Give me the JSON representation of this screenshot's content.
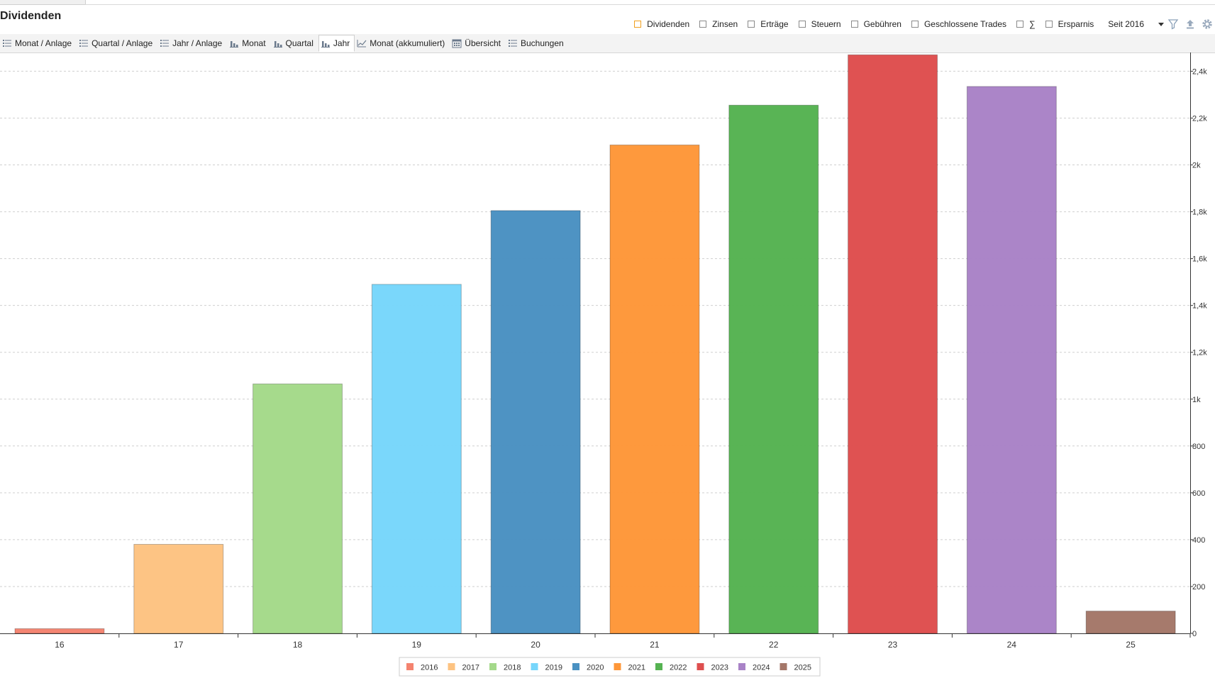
{
  "header": {
    "title": "Dividenden"
  },
  "filters": {
    "items": [
      {
        "label": "Dividenden",
        "checked": true
      },
      {
        "label": "Zinsen",
        "checked": false
      },
      {
        "label": "Erträge",
        "checked": false
      },
      {
        "label": "Steuern",
        "checked": false
      },
      {
        "label": "Gebühren",
        "checked": false
      },
      {
        "label": "Geschlossene Trades",
        "checked": false
      },
      {
        "label": "∑",
        "checked": false
      },
      {
        "label": "Ersparnis",
        "checked": false
      }
    ],
    "range_value": "Seit 2016",
    "icons": [
      "filter-icon",
      "upload-icon",
      "gear-icon"
    ]
  },
  "view_tabs": {
    "items": [
      {
        "label": "Monat / Anlage",
        "icon": "list-icon"
      },
      {
        "label": "Quartal / Anlage",
        "icon": "list-icon"
      },
      {
        "label": "Jahr / Anlage",
        "icon": "list-icon"
      },
      {
        "label": "Monat",
        "icon": "bar-chart-icon"
      },
      {
        "label": "Quartal",
        "icon": "bar-chart-icon"
      },
      {
        "label": "Jahr",
        "icon": "bar-chart-icon"
      },
      {
        "label": "Monat (akkumuliert)",
        "icon": "line-chart-icon"
      },
      {
        "label": "Übersicht",
        "icon": "calendar-icon"
      },
      {
        "label": "Buchungen",
        "icon": "list-icon"
      }
    ],
    "active_index": 5
  },
  "chart_data": {
    "type": "bar",
    "categories": [
      "16",
      "17",
      "18",
      "19",
      "20",
      "21",
      "22",
      "23",
      "24",
      "25"
    ],
    "values": [
      20,
      380,
      1065,
      1490,
      1805,
      2085,
      2255,
      2470,
      2335,
      95
    ],
    "colors": [
      "#f4836f",
      "#fdc382",
      "#a4d98a",
      "#77d6fb",
      "#4a91c2",
      "#fe9739",
      "#56b352",
      "#de4f4f",
      "#a983c7",
      "#a47769"
    ],
    "ylim": [
      0,
      2480
    ],
    "y_ticks": [
      {
        "value": 0,
        "label": "0"
      },
      {
        "value": 200,
        "label": "200"
      },
      {
        "value": 400,
        "label": "400"
      },
      {
        "value": 600,
        "label": "600"
      },
      {
        "value": 800,
        "label": "800"
      },
      {
        "value": 1000,
        "label": "1k"
      },
      {
        "value": 1200,
        "label": "1,2k"
      },
      {
        "value": 1400,
        "label": "1,4k"
      },
      {
        "value": 1600,
        "label": "1,6k"
      },
      {
        "value": 1800,
        "label": "1,8k"
      },
      {
        "value": 2000,
        "label": "2k"
      },
      {
        "value": 2200,
        "label": "2,2k"
      },
      {
        "value": 2400,
        "label": "2,4k"
      }
    ],
    "y_axis_side": "right",
    "grid": true,
    "legend": {
      "position": "bottom-center",
      "entries": [
        "2016",
        "2017",
        "2018",
        "2019",
        "2020",
        "2021",
        "2022",
        "2023",
        "2024",
        "2025"
      ]
    }
  }
}
